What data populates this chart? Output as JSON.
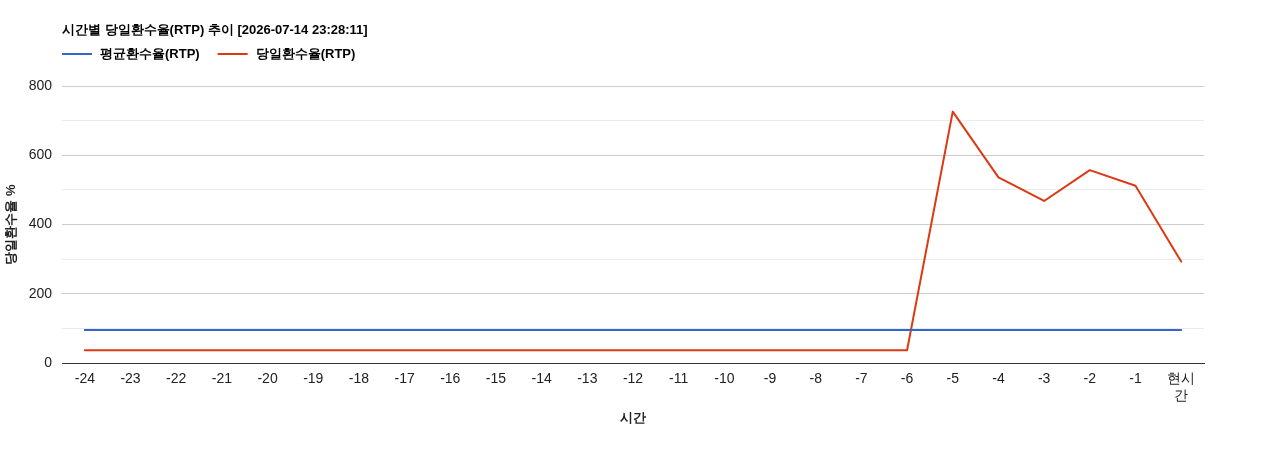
{
  "chart_data": {
    "type": "line",
    "title": "시간별 당일환수율(RTP) 추이 [2026-07-14 23:28:11]",
    "xlabel": "시간",
    "ylabel": "당일환수율 %",
    "categories": [
      "-24",
      "-23",
      "-22",
      "-21",
      "-20",
      "-19",
      "-18",
      "-17",
      "-16",
      "-15",
      "-14",
      "-13",
      "-12",
      "-11",
      "-10",
      "-9",
      "-8",
      "-7",
      "-6",
      "-5",
      "-4",
      "-3",
      "-2",
      "-1",
      "현시간"
    ],
    "series": [
      {
        "name": "평균환수율(RTP)",
        "color": "#3366cc",
        "values": [
          95,
          95,
          95,
          95,
          95,
          95,
          95,
          95,
          95,
          95,
          95,
          95,
          95,
          95,
          95,
          95,
          95,
          95,
          95,
          95,
          95,
          95,
          95,
          95,
          95
        ]
      },
      {
        "name": "당일환수율(RTP)",
        "color": "#dc3912",
        "values": [
          37,
          37,
          37,
          37,
          37,
          37,
          37,
          37,
          37,
          37,
          37,
          37,
          37,
          37,
          37,
          37,
          37,
          37,
          37,
          726,
          536,
          468,
          557,
          512,
          293
        ]
      }
    ],
    "ylim": [
      0,
      800
    ],
    "yticks": [
      0,
      {
        "value": 100,
        "label": null
      },
      200,
      {
        "value": 300,
        "label": null
      },
      400,
      {
        "value": 500,
        "label": null
      },
      600,
      {
        "value": 700,
        "label": null
      },
      800
    ],
    "grid": "y",
    "legend": "top left",
    "marker": "none",
    "line_style": "solid"
  }
}
